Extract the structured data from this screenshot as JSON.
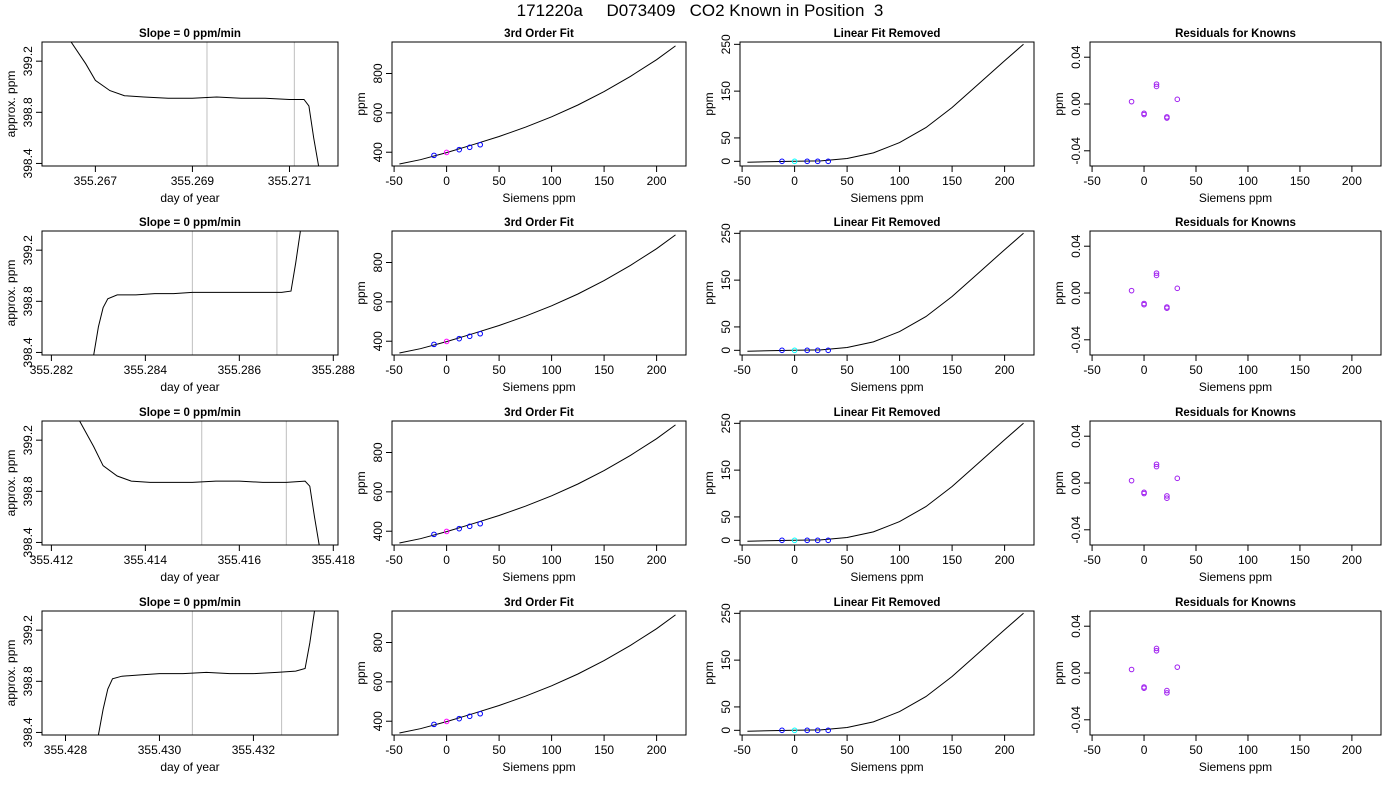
{
  "title": "171220a     D073409   CO2 Known in Position  3",
  "colors": {
    "trace": "#000000",
    "grid_line": "#bebebe",
    "point": "#0000ff",
    "point_alt": "#ff00ff",
    "point_cyan": "#00ffff",
    "residual_point": "#a020f0"
  },
  "chart_data": [
    {
      "type": "line",
      "row": 0,
      "panel": "timeseries",
      "title": "Slope =  0  ppm/min",
      "xlabel": "day of year",
      "ylabel": "approx. ppm",
      "xticks": [
        "355.267",
        "355.269",
        "355.271"
      ],
      "xtick_values": [
        355.267,
        355.269,
        355.271
      ],
      "yticks": [
        "398.4",
        "398.8",
        "399.2"
      ],
      "ytick_values": [
        398.4,
        398.8,
        399.2
      ],
      "xlim": [
        355.2659,
        355.272
      ],
      "ylim": [
        398.38,
        399.35
      ],
      "x": [
        355.2665,
        355.2668,
        355.267,
        355.2673,
        355.2676,
        355.268,
        355.2685,
        355.269,
        355.2695,
        355.27,
        355.2705,
        355.271,
        355.2713,
        355.2714,
        355.2715,
        355.2716
      ],
      "y": [
        399.35,
        399.18,
        399.05,
        398.97,
        398.93,
        398.92,
        398.91,
        398.91,
        398.92,
        398.91,
        398.91,
        398.9,
        398.9,
        398.85,
        398.6,
        398.38
      ],
      "vlines": [
        355.2693,
        355.2711
      ]
    },
    {
      "type": "scatter",
      "row": 0,
      "panel": "fit",
      "title": "3rd Order Fit",
      "xlabel": "Siemens ppm",
      "ylabel": "ppm",
      "xticks": [
        "-50",
        "0",
        "50",
        "100",
        "150",
        "200"
      ],
      "xtick_values": [
        -50,
        0,
        50,
        100,
        150,
        200
      ],
      "yticks": [
        "400",
        "600",
        "800"
      ],
      "ytick_values": [
        400,
        600,
        800
      ],
      "xlim": [
        -52,
        228
      ],
      "ylim": [
        330,
        960
      ],
      "curve": {
        "x": [
          -45,
          -25,
          0,
          25,
          50,
          75,
          100,
          125,
          150,
          175,
          200,
          218
        ],
        "y": [
          340,
          362,
          398,
          438,
          480,
          527,
          580,
          640,
          708,
          785,
          870,
          940
        ]
      },
      "points": {
        "x": [
          -12,
          0,
          12,
          22,
          32
        ],
        "y": [
          384,
          399,
          413,
          425,
          438
        ]
      }
    },
    {
      "type": "scatter",
      "row": 0,
      "panel": "linear_removed",
      "title": "Linear Fit Removed",
      "xlabel": "Siemens ppm",
      "ylabel": "ppm",
      "xticks": [
        "-50",
        "0",
        "50",
        "100",
        "150",
        "200"
      ],
      "xtick_values": [
        -50,
        0,
        50,
        100,
        150,
        200
      ],
      "yticks": [
        "0",
        "50",
        "150",
        "250"
      ],
      "ytick_values": [
        0,
        50,
        150,
        250
      ],
      "xlim": [
        -52,
        228
      ],
      "ylim": [
        -10,
        255
      ],
      "curve": {
        "x": [
          -45,
          -20,
          0,
          25,
          50,
          75,
          100,
          125,
          150,
          175,
          200,
          218
        ],
        "y": [
          -2,
          -0.5,
          0,
          1,
          6,
          18,
          40,
          72,
          115,
          165,
          215,
          250
        ]
      },
      "points": {
        "x": [
          -12,
          0,
          12,
          22,
          32
        ],
        "y": [
          0,
          0,
          0,
          0,
          0
        ]
      }
    },
    {
      "type": "scatter",
      "row": 0,
      "panel": "residuals",
      "title": "Residuals for Knowns",
      "xlabel": "Siemens ppm",
      "ylabel": "ppm",
      "xticks": [
        "-50",
        "0",
        "50",
        "100",
        "150",
        "200"
      ],
      "xtick_values": [
        -50,
        0,
        50,
        100,
        150,
        200
      ],
      "yticks": [
        "-0.04",
        "0.00",
        "0.04"
      ],
      "ytick_values": [
        -0.04,
        0.0,
        0.04
      ],
      "xlim": [
        -52,
        228
      ],
      "ylim": [
        -0.053,
        0.053
      ],
      "points": {
        "x": [
          -12,
          0,
          0,
          12,
          12,
          22,
          22,
          32
        ],
        "y": [
          0.002,
          -0.008,
          -0.009,
          0.015,
          0.017,
          -0.011,
          -0.012,
          0.004
        ]
      }
    },
    {
      "type": "line",
      "row": 1,
      "panel": "timeseries",
      "title": "Slope =  0  ppm/min",
      "xlabel": "day of year",
      "ylabel": "approx. ppm",
      "xticks": [
        "355.282",
        "355.284",
        "355.286",
        "355.288"
      ],
      "xtick_values": [
        355.282,
        355.284,
        355.286,
        355.288
      ],
      "yticks": [
        "398.4",
        "398.8",
        "399.2"
      ],
      "ytick_values": [
        398.4,
        398.8,
        399.2
      ],
      "xlim": [
        355.2818,
        355.2881
      ],
      "ylim": [
        398.38,
        399.35
      ],
      "x": [
        355.2829,
        355.283,
        355.2831,
        355.2832,
        355.2834,
        355.2838,
        355.2842,
        355.2846,
        355.285,
        355.2855,
        355.286,
        355.2865,
        355.2869,
        355.2871,
        355.2872,
        355.2873
      ],
      "y": [
        398.38,
        398.6,
        398.75,
        398.82,
        398.85,
        398.85,
        398.86,
        398.86,
        398.87,
        398.87,
        398.87,
        398.87,
        398.87,
        398.88,
        399.1,
        399.35
      ],
      "vlines": [
        355.285,
        355.2868
      ]
    },
    {
      "type": "scatter",
      "row": 1,
      "panel": "fit",
      "title": "3rd Order Fit",
      "xlabel": "Siemens ppm",
      "ylabel": "ppm",
      "xticks": [
        "-50",
        "0",
        "50",
        "100",
        "150",
        "200"
      ],
      "xtick_values": [
        -50,
        0,
        50,
        100,
        150,
        200
      ],
      "yticks": [
        "400",
        "600",
        "800"
      ],
      "ytick_values": [
        400,
        600,
        800
      ],
      "xlim": [
        -52,
        228
      ],
      "ylim": [
        330,
        960
      ],
      "curve": {
        "x": [
          -45,
          -25,
          0,
          25,
          50,
          75,
          100,
          125,
          150,
          175,
          200,
          218
        ],
        "y": [
          340,
          362,
          398,
          438,
          480,
          527,
          580,
          640,
          708,
          785,
          870,
          940
        ]
      },
      "points": {
        "x": [
          -12,
          0,
          12,
          22,
          32
        ],
        "y": [
          384,
          399,
          413,
          425,
          438
        ]
      }
    },
    {
      "type": "scatter",
      "row": 1,
      "panel": "linear_removed",
      "title": "Linear Fit Removed",
      "xlabel": "Siemens ppm",
      "ylabel": "ppm",
      "xticks": [
        "-50",
        "0",
        "50",
        "100",
        "150",
        "200"
      ],
      "xtick_values": [
        -50,
        0,
        50,
        100,
        150,
        200
      ],
      "yticks": [
        "0",
        "50",
        "150",
        "250"
      ],
      "ytick_values": [
        0,
        50,
        150,
        250
      ],
      "xlim": [
        -52,
        228
      ],
      "ylim": [
        -10,
        255
      ],
      "curve": {
        "x": [
          -45,
          -20,
          0,
          25,
          50,
          75,
          100,
          125,
          150,
          175,
          200,
          218
        ],
        "y": [
          -2,
          -0.5,
          0,
          1,
          6,
          18,
          40,
          72,
          115,
          165,
          215,
          250
        ]
      },
      "points": {
        "x": [
          -12,
          0,
          12,
          22,
          32
        ],
        "y": [
          0,
          0,
          0,
          0,
          0
        ]
      }
    },
    {
      "type": "scatter",
      "row": 1,
      "panel": "residuals",
      "title": "Residuals for Knowns",
      "xlabel": "Siemens ppm",
      "ylabel": "ppm",
      "xticks": [
        "-50",
        "0",
        "50",
        "100",
        "150",
        "200"
      ],
      "xtick_values": [
        -50,
        0,
        50,
        100,
        150,
        200
      ],
      "yticks": [
        "-0.04",
        "0.00",
        "0.04"
      ],
      "ytick_values": [
        -0.04,
        0.0,
        0.04
      ],
      "xlim": [
        -52,
        228
      ],
      "ylim": [
        -0.053,
        0.053
      ],
      "points": {
        "x": [
          -12,
          0,
          0,
          12,
          12,
          22,
          22,
          32
        ],
        "y": [
          0.002,
          -0.009,
          -0.01,
          0.015,
          0.017,
          -0.012,
          -0.013,
          0.004
        ]
      }
    },
    {
      "type": "line",
      "row": 2,
      "panel": "timeseries",
      "title": "Slope =  0  ppm/min",
      "xlabel": "day of year",
      "ylabel": "approx. ppm",
      "xticks": [
        "355.412",
        "355.414",
        "355.416",
        "355.418"
      ],
      "xtick_values": [
        355.412,
        355.414,
        355.416,
        355.418
      ],
      "yticks": [
        "398.4",
        "398.8",
        "399.2"
      ],
      "ytick_values": [
        398.4,
        398.8,
        399.2
      ],
      "xlim": [
        355.4118,
        355.4181
      ],
      "ylim": [
        398.38,
        399.35
      ],
      "x": [
        355.4126,
        355.4129,
        355.4131,
        355.4134,
        355.4137,
        355.4141,
        355.4146,
        355.415,
        355.4155,
        355.416,
        355.4165,
        355.417,
        355.4174,
        355.4175,
        355.4176,
        355.4177
      ],
      "y": [
        399.35,
        399.15,
        399.0,
        398.92,
        398.88,
        398.87,
        398.87,
        398.87,
        398.88,
        398.88,
        398.87,
        398.87,
        398.88,
        398.84,
        398.6,
        398.38
      ],
      "vlines": [
        355.4152,
        355.417
      ]
    },
    {
      "type": "scatter",
      "row": 2,
      "panel": "fit",
      "title": "3rd Order Fit",
      "xlabel": "Siemens ppm",
      "ylabel": "ppm",
      "xticks": [
        "-50",
        "0",
        "50",
        "100",
        "150",
        "200"
      ],
      "xtick_values": [
        -50,
        0,
        50,
        100,
        150,
        200
      ],
      "yticks": [
        "400",
        "600",
        "800"
      ],
      "ytick_values": [
        400,
        600,
        800
      ],
      "xlim": [
        -52,
        228
      ],
      "ylim": [
        330,
        960
      ],
      "curve": {
        "x": [
          -45,
          -25,
          0,
          25,
          50,
          75,
          100,
          125,
          150,
          175,
          200,
          218
        ],
        "y": [
          340,
          362,
          398,
          438,
          480,
          527,
          580,
          640,
          708,
          785,
          870,
          940
        ]
      },
      "points": {
        "x": [
          -12,
          0,
          12,
          22,
          32
        ],
        "y": [
          384,
          399,
          413,
          425,
          438
        ]
      }
    },
    {
      "type": "scatter",
      "row": 2,
      "panel": "linear_removed",
      "title": "Linear Fit Removed",
      "xlabel": "Siemens ppm",
      "ylabel": "ppm",
      "xticks": [
        "-50",
        "0",
        "50",
        "100",
        "150",
        "200"
      ],
      "xtick_values": [
        -50,
        0,
        50,
        100,
        150,
        200
      ],
      "yticks": [
        "0",
        "50",
        "150",
        "250"
      ],
      "ytick_values": [
        0,
        50,
        150,
        250
      ],
      "xlim": [
        -52,
        228
      ],
      "ylim": [
        -10,
        255
      ],
      "curve": {
        "x": [
          -45,
          -20,
          0,
          25,
          50,
          75,
          100,
          125,
          150,
          175,
          200,
          218
        ],
        "y": [
          -2,
          -0.5,
          0,
          1,
          6,
          18,
          40,
          72,
          115,
          165,
          215,
          250
        ]
      },
      "points": {
        "x": [
          -12,
          0,
          12,
          22,
          32
        ],
        "y": [
          0,
          0,
          0,
          0,
          0
        ]
      }
    },
    {
      "type": "scatter",
      "row": 2,
      "panel": "residuals",
      "title": "Residuals for Knowns",
      "xlabel": "Siemens ppm",
      "ylabel": "ppm",
      "xticks": [
        "-50",
        "0",
        "50",
        "100",
        "150",
        "200"
      ],
      "xtick_values": [
        -50,
        0,
        50,
        100,
        150,
        200
      ],
      "yticks": [
        "-0.04",
        "0.00",
        "0.04"
      ],
      "ytick_values": [
        -0.04,
        0.0,
        0.04
      ],
      "xlim": [
        -52,
        228
      ],
      "ylim": [
        -0.053,
        0.053
      ],
      "points": {
        "x": [
          -12,
          0,
          0,
          12,
          12,
          22,
          22,
          32
        ],
        "y": [
          0.002,
          -0.008,
          -0.009,
          0.014,
          0.016,
          -0.011,
          -0.013,
          0.004
        ]
      }
    },
    {
      "type": "line",
      "row": 3,
      "panel": "timeseries",
      "title": "Slope =  0  ppm/min",
      "xlabel": "day of year",
      "ylabel": "approx. ppm",
      "xticks": [
        "355.428",
        "355.430",
        "355.432"
      ],
      "xtick_values": [
        355.428,
        355.43,
        355.432
      ],
      "yticks": [
        "398.4",
        "398.8",
        "399.2"
      ],
      "ytick_values": [
        398.4,
        398.8,
        399.2
      ],
      "xlim": [
        355.4275,
        355.4338
      ],
      "ylim": [
        398.38,
        399.35
      ],
      "x": [
        355.4287,
        355.4288,
        355.4289,
        355.429,
        355.4292,
        355.4296,
        355.43,
        355.4305,
        355.431,
        355.4315,
        355.432,
        355.4325,
        355.4329,
        355.4331,
        355.4332,
        355.4333
      ],
      "y": [
        398.38,
        398.58,
        398.74,
        398.82,
        398.84,
        398.85,
        398.86,
        398.86,
        398.87,
        398.86,
        398.86,
        398.87,
        398.88,
        398.9,
        399.1,
        399.35
      ],
      "vlines": [
        355.4307,
        355.4326
      ]
    },
    {
      "type": "scatter",
      "row": 3,
      "panel": "fit",
      "title": "3rd Order Fit",
      "xlabel": "Siemens ppm",
      "ylabel": "ppm",
      "xticks": [
        "-50",
        "0",
        "50",
        "100",
        "150",
        "200"
      ],
      "xtick_values": [
        -50,
        0,
        50,
        100,
        150,
        200
      ],
      "yticks": [
        "400",
        "600",
        "800"
      ],
      "ytick_values": [
        400,
        600,
        800
      ],
      "xlim": [
        -52,
        228
      ],
      "ylim": [
        330,
        960
      ],
      "curve": {
        "x": [
          -45,
          -25,
          0,
          25,
          50,
          75,
          100,
          125,
          150,
          175,
          200,
          218
        ],
        "y": [
          340,
          362,
          398,
          438,
          480,
          527,
          580,
          640,
          708,
          785,
          870,
          940
        ]
      },
      "points": {
        "x": [
          -12,
          0,
          12,
          22,
          32
        ],
        "y": [
          384,
          399,
          413,
          425,
          438
        ]
      }
    },
    {
      "type": "scatter",
      "row": 3,
      "panel": "linear_removed",
      "title": "Linear Fit Removed",
      "xlabel": "Siemens ppm",
      "ylabel": "ppm",
      "xticks": [
        "-50",
        "0",
        "50",
        "100",
        "150",
        "200"
      ],
      "xtick_values": [
        -50,
        0,
        50,
        100,
        150,
        200
      ],
      "yticks": [
        "0",
        "50",
        "150",
        "250"
      ],
      "ytick_values": [
        0,
        50,
        150,
        250
      ],
      "xlim": [
        -52,
        228
      ],
      "ylim": [
        -10,
        255
      ],
      "curve": {
        "x": [
          -45,
          -20,
          0,
          25,
          50,
          75,
          100,
          125,
          150,
          175,
          200,
          218
        ],
        "y": [
          -2,
          -0.5,
          0,
          1,
          6,
          18,
          40,
          72,
          115,
          165,
          215,
          250
        ]
      },
      "points": {
        "x": [
          -12,
          0,
          12,
          22,
          32
        ],
        "y": [
          0,
          0,
          0,
          0,
          0
        ]
      }
    },
    {
      "type": "scatter",
      "row": 3,
      "panel": "residuals",
      "title": "Residuals for Knowns",
      "xlabel": "Siemens ppm",
      "ylabel": "ppm",
      "xticks": [
        "-50",
        "0",
        "50",
        "100",
        "150",
        "200"
      ],
      "xtick_values": [
        -50,
        0,
        50,
        100,
        150,
        200
      ],
      "yticks": [
        "-0.04",
        "0.00",
        "0.04"
      ],
      "ytick_values": [
        -0.04,
        0.0,
        0.04
      ],
      "xlim": [
        -52,
        228
      ],
      "ylim": [
        -0.053,
        0.053
      ],
      "points": {
        "x": [
          -12,
          0,
          0,
          12,
          12,
          22,
          22,
          32
        ],
        "y": [
          0.003,
          -0.012,
          -0.013,
          0.019,
          0.021,
          -0.015,
          -0.017,
          0.005
        ]
      }
    }
  ]
}
